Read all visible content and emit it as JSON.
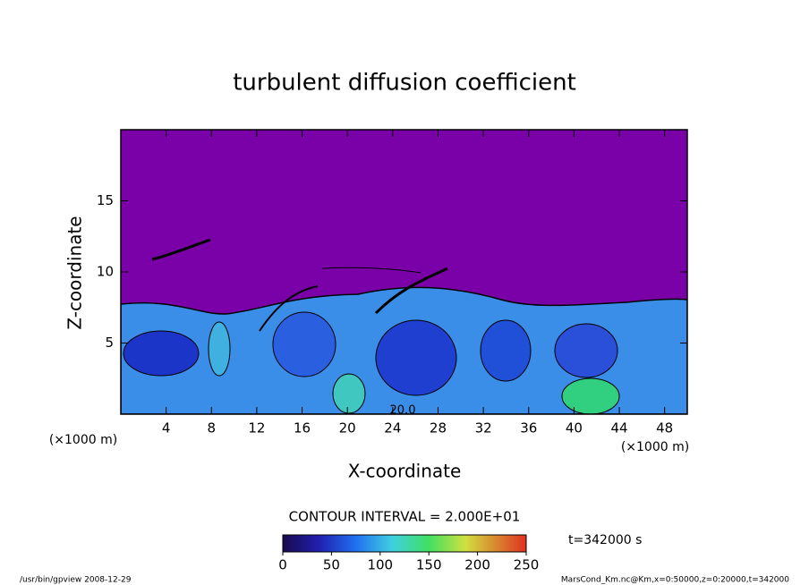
{
  "chart_data": {
    "type": "contour",
    "title": "turbulent diffusion coefficient",
    "x_label": "X-coordinate",
    "y_label": "Z-coordinate",
    "x_unit": "(×1000 m)",
    "y_unit": "(×1000 m)",
    "xlim": [
      0,
      50
    ],
    "ylim": [
      0,
      20
    ],
    "xticks": [
      4,
      8,
      12,
      16,
      20,
      24,
      28,
      32,
      36,
      40,
      44,
      48
    ],
    "yticks": [
      5,
      10,
      15
    ],
    "contour_interval": "CONTOUR INTERVAL = 2.000E+01",
    "annotations": [
      "20.0"
    ],
    "colorbar": {
      "lim": [
        0,
        250
      ],
      "ticks": [
        0,
        50,
        100,
        150,
        200,
        250
      ]
    },
    "time_label": "t=342000 s",
    "footer_left": "/usr/bin/gpview  2008-12-29",
    "footer_right": "MarsCond_Km.nc@Km,x=0:50000,z=0:20000,t=342000"
  }
}
